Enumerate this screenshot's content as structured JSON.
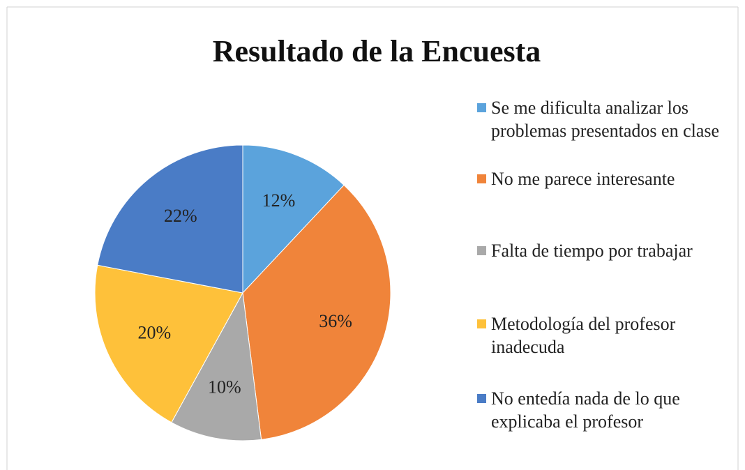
{
  "chart_data": {
    "type": "pie",
    "title": "Resultado de la Encuesta",
    "categories": [
      "Se me dificulta analizar los problemas presentados en clase",
      "No me parece interesante",
      "Falta de tiempo por trabajar",
      "Metodología del profesor inadecuda",
      "No entedía nada de lo que explicaba el profesor"
    ],
    "values": [
      12,
      36,
      10,
      20,
      22
    ],
    "value_labels": [
      "12%",
      "36%",
      "10%",
      "20%",
      "22%"
    ],
    "colors": [
      "#5ba3dc",
      "#f0843a",
      "#a9a9a9",
      "#fec13a",
      "#4a7cc6"
    ],
    "legend": "right"
  }
}
